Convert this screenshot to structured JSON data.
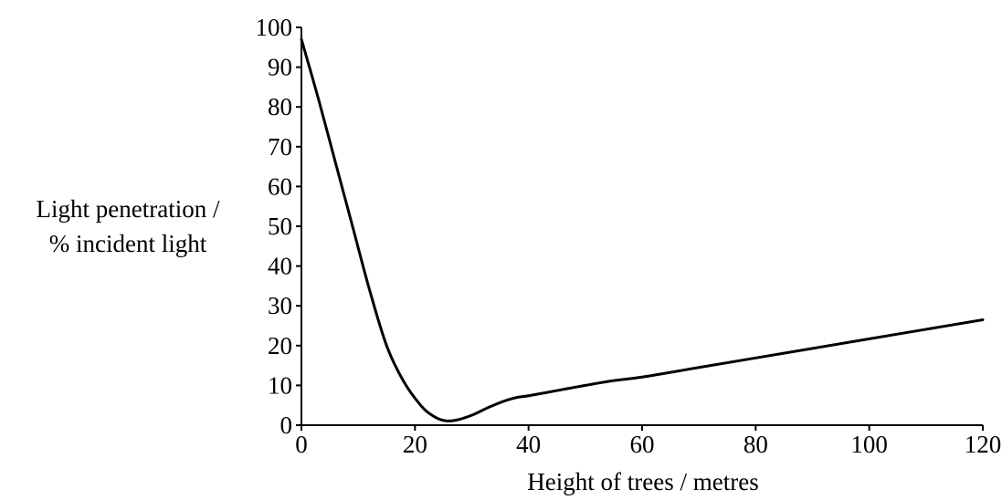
{
  "chart_data": {
    "type": "line",
    "title": "",
    "ylabel": [
      "Light penetration /",
      "% incident light"
    ],
    "xlabel": "Height of trees / metres",
    "xlim": [
      0,
      120
    ],
    "ylim": [
      0,
      100
    ],
    "x_ticks": [
      0,
      20,
      40,
      60,
      80,
      100,
      120
    ],
    "y_ticks": [
      0,
      10,
      20,
      30,
      40,
      50,
      60,
      70,
      80,
      90,
      100
    ],
    "grid": false,
    "series": [
      {
        "color": "#000000",
        "x": [
          0,
          3,
          6,
          9,
          12,
          15,
          18,
          21,
          23,
          25,
          27,
          30,
          33,
          36,
          38,
          40,
          45,
          50,
          55,
          60,
          70,
          80,
          90,
          100,
          110,
          120
        ],
        "y": [
          97,
          82,
          66,
          50,
          34,
          20,
          11,
          5,
          2.5,
          1.2,
          1.2,
          2.5,
          4.5,
          6.2,
          7,
          7.4,
          8.7,
          10,
          11.2,
          12.1,
          14.5,
          16.9,
          19.3,
          21.7,
          24.1,
          26.5
        ]
      }
    ]
  }
}
